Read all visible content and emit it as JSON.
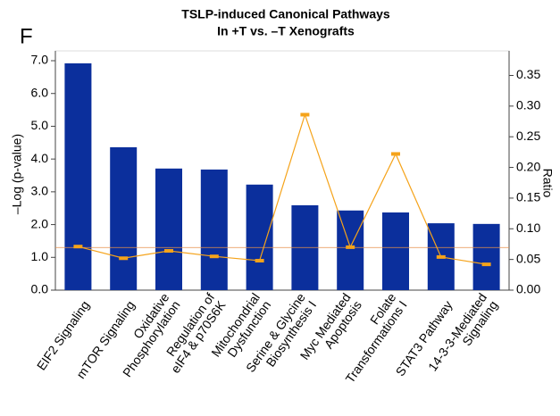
{
  "panel": "F",
  "chart_data": {
    "type": "bar",
    "title": "TSLP-induced Canonical Pathways",
    "subtitle": "In +T vs. –T Xenografts",
    "y_label": "–Log (p-value)",
    "y2_label": "Ratio",
    "categories": [
      "EIF2 Signaling",
      "mTOR Signaling",
      "Oxidative\nPhosphorylation",
      "Regulation of\neIF4 & p70S6K",
      "Mitochondrial\nDysfunction",
      "Serine & Glycine\nBiosynthesis I",
      "Myc Mediated\nApoptosis",
      "Folate\nTransformations I",
      "STAT3 Pathway",
      "14-3-3-Mediated\nSignaling"
    ],
    "series": [
      {
        "name": "–Log (p-value)",
        "color": "#0b2f9c",
        "values": [
          6.92,
          4.36,
          3.71,
          3.68,
          3.22,
          2.59,
          2.43,
          2.37,
          2.04,
          2.02
        ]
      },
      {
        "name": "Ratio",
        "color": "#f5a31a",
        "axis": "y2",
        "values": [
          0.071,
          0.052,
          0.064,
          0.055,
          0.048,
          0.286,
          0.07,
          0.222,
          0.054,
          0.042
        ]
      }
    ],
    "threshold": 1.3,
    "ylim": [
      0,
      7.3
    ],
    "yticks": [
      {
        "value": 0,
        "label": "0.0"
      },
      {
        "value": 1,
        "label": "1.0"
      },
      {
        "value": 2,
        "label": "2.0"
      },
      {
        "value": 3,
        "label": "3.0"
      },
      {
        "value": 4,
        "label": "4.0"
      },
      {
        "value": 5,
        "label": "5.0"
      },
      {
        "value": 6,
        "label": "6.0"
      },
      {
        "value": 7,
        "label": "7.0"
      }
    ],
    "y2lim": [
      0,
      0.39
    ],
    "y2ticks": [
      {
        "value": 0,
        "label": "0.00"
      },
      {
        "value": 0.05,
        "label": "0.05"
      },
      {
        "value": 0.1,
        "label": "0.10"
      },
      {
        "value": 0.15,
        "label": "0.15"
      },
      {
        "value": 0.2,
        "label": "0.20"
      },
      {
        "value": 0.25,
        "label": "0.25"
      },
      {
        "value": 0.3,
        "label": "0.30"
      },
      {
        "value": 0.35,
        "label": "0.35"
      }
    ]
  }
}
